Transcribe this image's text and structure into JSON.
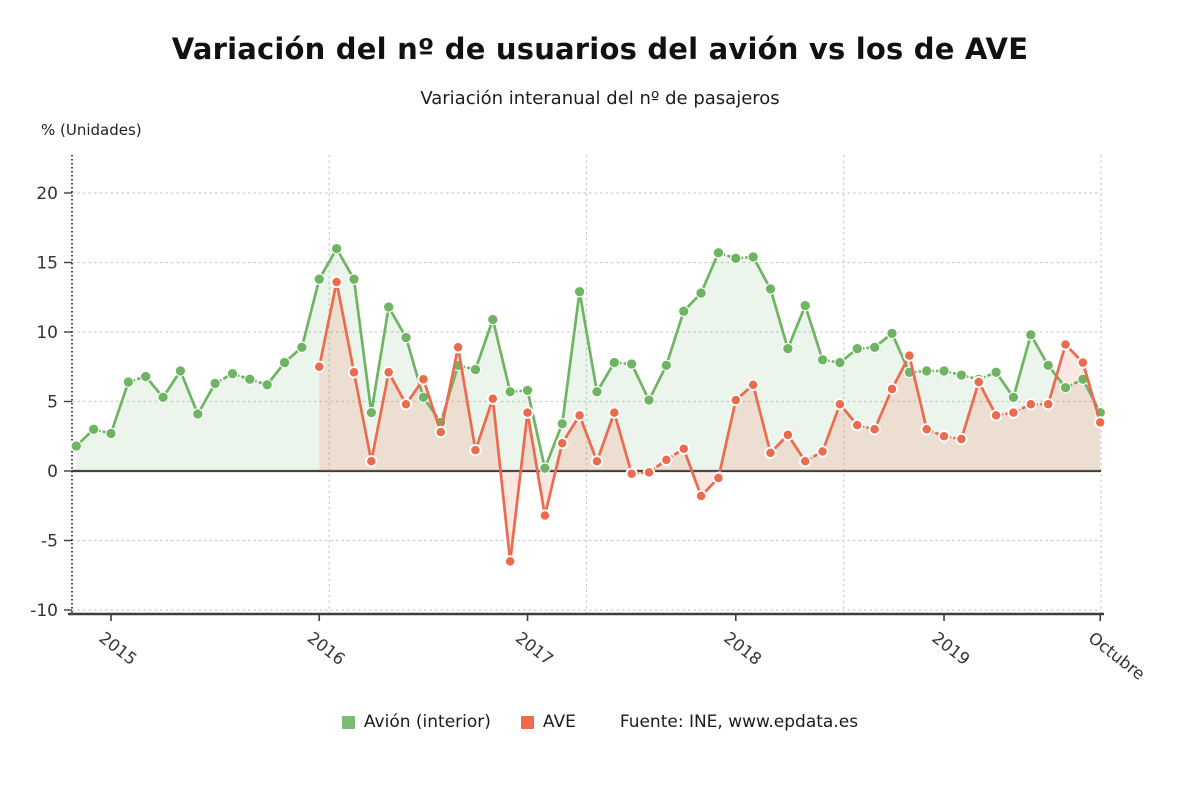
{
  "title": "Variación del nº de usuarios del avión vs los de AVE",
  "subtitle": "Variación interanual del nº de pasajeros",
  "y_axis_title": "% (Unidades)",
  "footer_source": "Fuente: INE, www.epdata.es",
  "legend": {
    "avion_label": "Avión (interior)",
    "ave_label": "AVE"
  },
  "colors": {
    "avion": "#6fb462",
    "avion_swatch": "#7cbb76",
    "ave": "#ec6a4d",
    "ave_swatch": "#f0694a",
    "grid": "#cdcdcd",
    "axis": "#3e3e3e",
    "tick_text": "#333333"
  },
  "chart_data": {
    "type": "line",
    "title": "Variación del nº de usuarios del avión vs los de AVE",
    "subtitle": "Variación interanual del nº de pasajeros",
    "ylabel": "% (Unidades)",
    "ylim": [
      -10.7,
      22.7
    ],
    "grid": true,
    "legend_position": "bottom",
    "y_ticks": [
      20,
      15,
      10,
      5,
      0,
      -5,
      -10
    ],
    "x_ticks": [
      {
        "label": "2015",
        "month_index": 0
      },
      {
        "label": "2016",
        "month_index": 12
      },
      {
        "label": "2017",
        "month_index": 24
      },
      {
        "label": "2018",
        "month_index": 36
      },
      {
        "label": "2019",
        "month_index": 48
      },
      {
        "label": "Octubre",
        "month_index": 57
      }
    ],
    "x_unit": "month",
    "series": [
      {
        "name": "Avión (interior)",
        "color": "#6fb462",
        "start_month_index": -2,
        "values": [
          1.8,
          3.0,
          2.7,
          6.4,
          6.8,
          5.3,
          7.2,
          4.1,
          6.3,
          7.0,
          6.6,
          6.2,
          7.8,
          8.9,
          13.8,
          16.0,
          13.8,
          4.2,
          11.8,
          9.6,
          5.3,
          3.5,
          7.6,
          7.3,
          10.9,
          5.7,
          5.8,
          0.2,
          3.4,
          12.9,
          5.7,
          7.8,
          7.7,
          5.1,
          7.6,
          11.5,
          12.8,
          15.7,
          15.3,
          15.4,
          13.1,
          8.8,
          11.9,
          8.0,
          7.8,
          8.8,
          8.9,
          9.9,
          7.1,
          7.2,
          7.2,
          6.9,
          6.6,
          7.1,
          5.3,
          9.8,
          7.6,
          6.0,
          6.6,
          4.2
        ]
      },
      {
        "name": "AVE",
        "color": "#ec6a4d",
        "start_month_index": 12,
        "values": [
          7.5,
          13.6,
          7.1,
          0.7,
          7.1,
          4.8,
          6.6,
          2.8,
          8.9,
          1.5,
          5.2,
          -6.5,
          4.2,
          -3.2,
          2.0,
          4.0,
          0.7,
          4.2,
          -0.2,
          -0.1,
          0.8,
          1.6,
          -1.8,
          -0.5,
          5.1,
          6.2,
          1.3,
          2.6,
          0.7,
          1.4,
          4.8,
          3.3,
          3.0,
          5.9,
          8.3,
          3.0,
          2.5,
          2.3,
          6.4,
          4.0,
          4.2,
          4.8,
          4.8,
          9.1,
          7.8,
          3.5
        ]
      }
    ]
  }
}
